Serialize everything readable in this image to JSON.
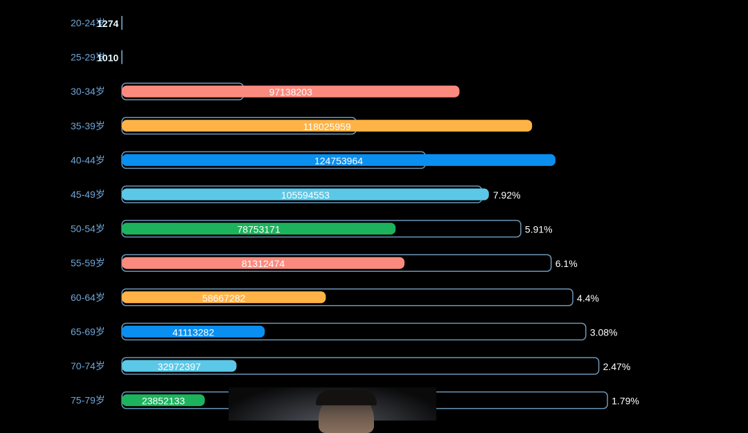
{
  "chart_data": {
    "type": "bar",
    "orientation": "horizontal",
    "categories": [
      "20-24岁",
      "25-29岁",
      "30-34岁",
      "35-39岁",
      "40-44岁",
      "45-49岁",
      "50-54岁",
      "55-59岁",
      "60-64岁",
      "65-69岁",
      "70-74岁",
      "75-79岁"
    ],
    "values": [
      1274,
      1010,
      97138203,
      118025959,
      124753964,
      105594553,
      78753171,
      81312474,
      58667282,
      41113282,
      32972397,
      23852133
    ],
    "value_labels": [
      "1274",
      "1010",
      "97138203",
      "118025959",
      "124753964",
      "105594553",
      "78753171",
      "81312474",
      "58667282",
      "41113282",
      "32972397",
      "23852133"
    ],
    "percent_labels": [
      "",
      "",
      "",
      "",
      "",
      "7.92%",
      "5.91%",
      "6.1%",
      "4.4%",
      "3.08%",
      "2.47%",
      "1.79%"
    ],
    "outline_fractions": [
      0,
      0,
      0.28,
      0.54,
      0.7,
      0.83,
      0.92,
      0.99,
      1.04,
      1.07,
      1.1,
      1.12
    ],
    "colors": [
      "#5bc8e8",
      "#1db35d",
      "#fb8a7e",
      "#ffb347",
      "#0a8ff0",
      "#5bc8e8",
      "#1db35d",
      "#fb8a7e",
      "#ffb347",
      "#0a8ff0",
      "#5bc8e8",
      "#1db35d"
    ],
    "outline_color": "#7fb2d8",
    "label_color": "#6fa6d6",
    "title": "",
    "xlabel": "",
    "ylabel": "",
    "grid": false,
    "legend": "none"
  }
}
